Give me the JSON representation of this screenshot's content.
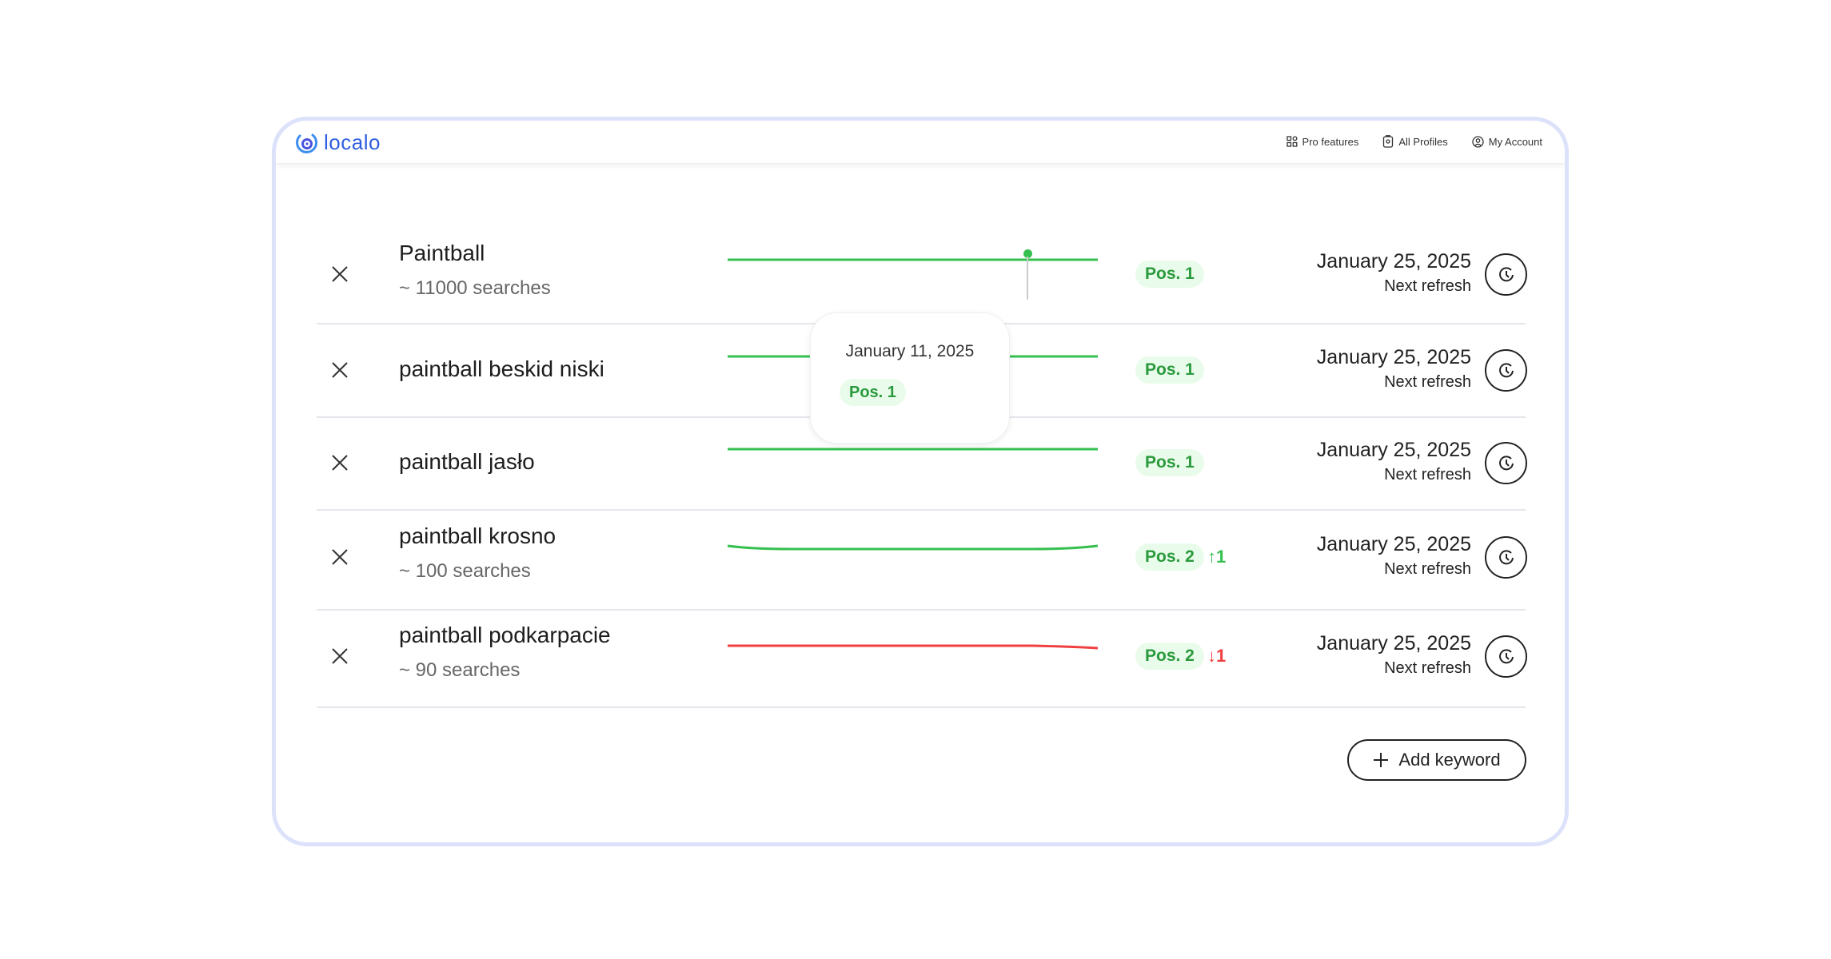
{
  "header": {
    "logo": "localo",
    "nav": [
      {
        "label": "Pro features",
        "icon": "grid-icon"
      },
      {
        "label": "All Profiles",
        "icon": "profile-card-icon"
      },
      {
        "label": "My Account",
        "icon": "user-circle-icon"
      }
    ]
  },
  "colors": {
    "up": "#36c050",
    "down": "#f04040",
    "badge_bg": "#e9fbea",
    "badge_text": "#2a9a3c",
    "border": "#dde2fb",
    "brand": "#2f5fe0"
  },
  "rows": [
    {
      "keyword": "Paintball",
      "searches": "~ 11000 searches",
      "position": "Pos. 1",
      "change": "",
      "trend": "flat",
      "date": "January 25, 2025",
      "next": "Next refresh"
    },
    {
      "keyword": "paintball beskid niski",
      "searches": "",
      "position": "Pos. 1",
      "change": "",
      "trend": "flat",
      "date": "January 25, 2025",
      "next": "Next refresh"
    },
    {
      "keyword": "paintball jasło",
      "searches": "",
      "position": "Pos. 1",
      "change": "",
      "trend": "flat",
      "date": "January 25, 2025",
      "next": "Next refresh"
    },
    {
      "keyword": "paintball krosno",
      "searches": "~ 100 searches",
      "position": "Pos. 2",
      "change": "↑1",
      "trend": "up",
      "date": "January 25, 2025",
      "next": "Next refresh"
    },
    {
      "keyword": "paintball podkarpacie",
      "searches": "~ 90 searches",
      "position": "Pos. 2",
      "change": "↓1",
      "trend": "down",
      "date": "January 25, 2025",
      "next": "Next refresh"
    }
  ],
  "tooltip": {
    "date": "January 11, 2025",
    "position": "Pos. 1"
  },
  "add_keyword": "Add keyword"
}
